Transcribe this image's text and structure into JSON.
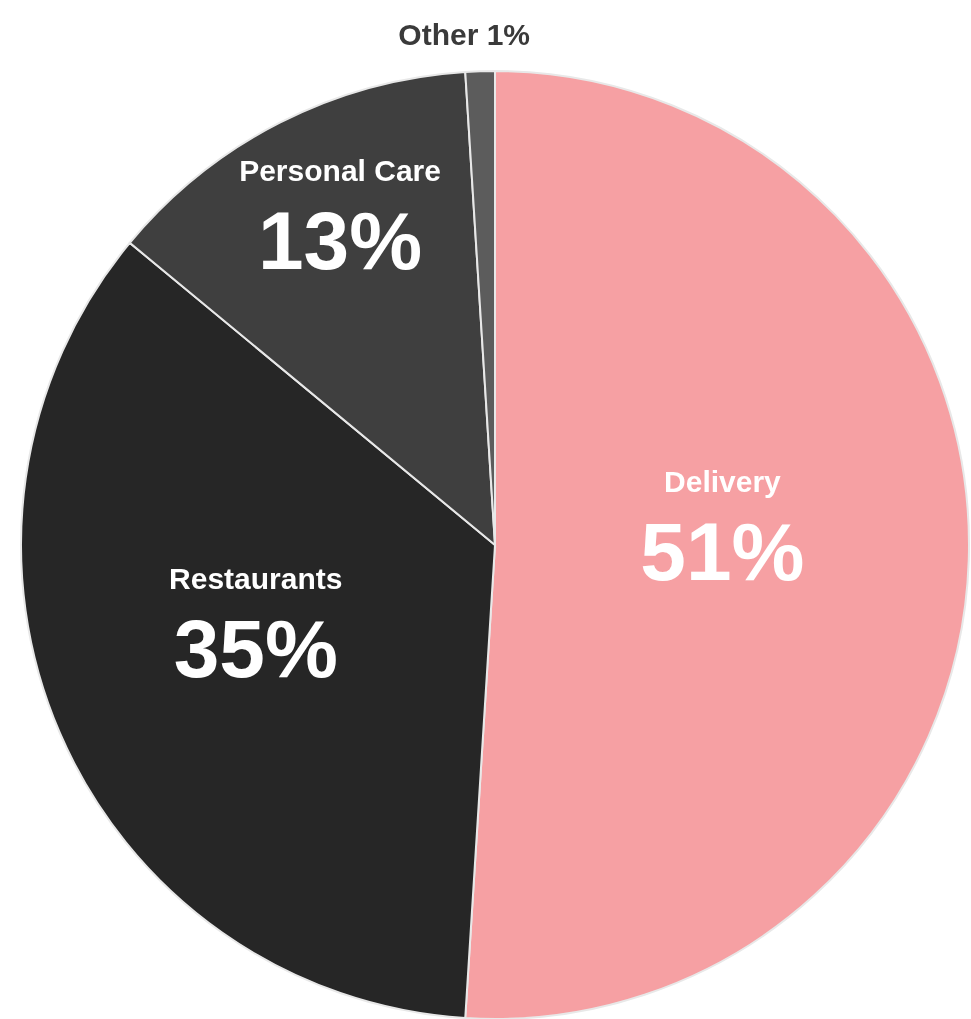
{
  "chart_data": {
    "type": "pie",
    "categories": [
      "Delivery",
      "Restaurants",
      "Personal Care",
      "Other"
    ],
    "values": [
      51,
      35,
      13,
      1
    ],
    "colors": [
      "#f6a0a3",
      "#262626",
      "#3f3f3f",
      "#5c5c5c"
    ],
    "value_labels": [
      "51%",
      "35%",
      "13%",
      "1%"
    ]
  }
}
